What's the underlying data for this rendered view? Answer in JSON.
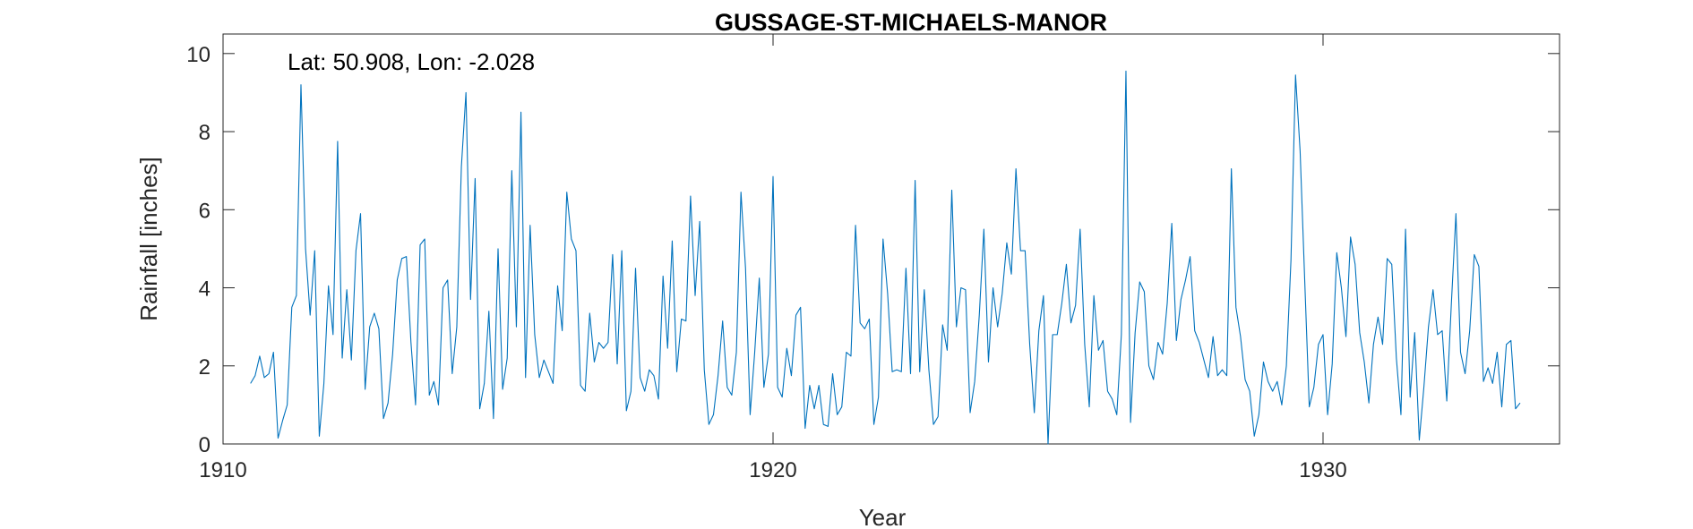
{
  "chart_data": {
    "type": "line",
    "title": "GUSSAGE-ST-MICHAELS-MANOR",
    "xlabel": "Year",
    "ylabel": "Rainfall [inches]",
    "annotation": "Lat: 50.908, Lon: -2.028",
    "xlim": [
      1910,
      1934.3
    ],
    "ylim": [
      0,
      10.5
    ],
    "xticks": [
      1910,
      1920,
      1930
    ],
    "yticks": [
      0,
      2,
      4,
      6,
      8,
      10
    ],
    "grid": false,
    "color": "#0072BD",
    "x_start": 1910.5,
    "x_step_months": 1,
    "values": [
      1.55,
      1.75,
      2.25,
      1.7,
      1.8,
      2.35,
      0.15,
      0.6,
      1.0,
      3.5,
      3.8,
      9.2,
      5.0,
      3.3,
      4.95,
      0.2,
      1.55,
      4.05,
      2.8,
      7.75,
      2.2,
      3.95,
      2.15,
      4.95,
      5.9,
      1.4,
      3.0,
      3.35,
      2.95,
      0.65,
      1.05,
      2.3,
      4.2,
      4.75,
      4.8,
      2.6,
      1.0,
      5.1,
      5.25,
      1.25,
      1.6,
      1.0,
      4.0,
      4.2,
      1.8,
      3.0,
      7.1,
      9.0,
      3.7,
      6.8,
      0.9,
      1.55,
      3.4,
      0.65,
      5.0,
      1.4,
      2.2,
      7.0,
      3.0,
      8.5,
      1.7,
      5.6,
      2.8,
      1.7,
      2.15,
      1.85,
      1.55,
      4.05,
      2.9,
      6.45,
      5.25,
      4.95,
      1.5,
      1.35,
      3.35,
      2.1,
      2.6,
      2.45,
      2.6,
      4.85,
      2.05,
      4.95,
      0.85,
      1.35,
      4.5,
      1.7,
      1.35,
      1.9,
      1.75,
      1.15,
      4.3,
      2.45,
      5.2,
      1.85,
      3.2,
      3.15,
      6.35,
      3.8,
      5.7,
      1.9,
      0.5,
      0.75,
      1.75,
      3.15,
      1.45,
      1.25,
      2.35,
      6.45,
      4.5,
      0.75,
      2.35,
      4.25,
      1.45,
      2.3,
      6.85,
      1.45,
      1.2,
      2.45,
      1.75,
      3.3,
      3.5,
      0.4,
      1.5,
      0.9,
      1.5,
      0.5,
      0.45,
      1.8,
      0.75,
      0.95,
      2.35,
      2.25,
      5.6,
      3.1,
      2.95,
      3.2,
      0.5,
      1.2,
      5.25,
      3.85,
      1.85,
      1.9,
      1.85,
      4.5,
      1.8,
      6.75,
      1.85,
      3.95,
      1.9,
      0.5,
      0.7,
      3.05,
      2.4,
      6.5,
      3.0,
      4.0,
      3.95,
      0.8,
      1.6,
      3.3,
      5.5,
      2.1,
      4.0,
      3.0,
      3.85,
      5.15,
      4.35,
      7.05,
      4.95,
      4.95,
      2.55,
      0.8,
      2.9,
      3.8,
      0.0,
      2.8,
      2.8,
      3.6,
      4.6,
      3.1,
      3.55,
      5.5,
      2.55,
      0.95,
      3.8,
      2.4,
      2.65,
      1.35,
      1.15,
      0.75,
      2.8,
      9.55,
      0.55,
      2.85,
      4.15,
      3.9,
      2.0,
      1.65,
      2.6,
      2.3,
      3.6,
      5.65,
      2.65,
      3.7,
      4.2,
      4.8,
      2.9,
      2.6,
      2.15,
      1.7,
      2.75,
      1.75,
      1.9,
      1.75,
      7.05,
      3.5,
      2.75,
      1.65,
      1.35,
      0.2,
      0.75,
      2.1,
      1.6,
      1.35,
      1.6,
      1.0,
      2.0,
      4.7,
      9.45,
      7.5,
      4.2,
      0.95,
      1.45,
      2.55,
      2.8,
      0.75,
      2.05,
      4.9,
      4.0,
      2.75,
      5.3,
      4.6,
      2.85,
      2.1,
      1.05,
      2.55,
      3.25,
      2.55,
      4.75,
      4.6,
      2.2,
      0.75,
      5.5,
      1.2,
      2.85,
      0.1,
      1.45,
      3.0,
      3.95,
      2.8,
      2.9,
      1.1,
      3.6,
      5.9,
      2.35,
      1.8,
      2.9,
      4.85,
      4.55,
      1.6,
      1.95,
      1.55,
      2.35,
      0.95,
      2.55,
      2.65,
      0.9,
      1.05
    ]
  }
}
